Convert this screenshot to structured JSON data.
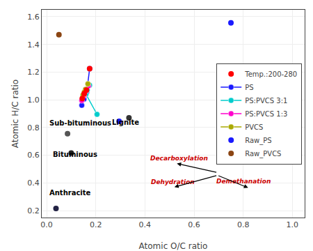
{
  "chart_data": {
    "type": "scatter",
    "xlabel": "Atomic O/C ratio",
    "ylabel": "Atomic H/C ratio",
    "xlim": [
      -0.02,
      1.05
    ],
    "ylim": [
      0.15,
      1.65
    ],
    "xticks": [
      {
        "value": 0.0,
        "label": "0.0"
      },
      0.2,
      0.4,
      0.6,
      0.8,
      {
        "value": 1.0,
        "label": "1.0"
      }
    ],
    "yticks": [
      0.2,
      0.4,
      0.6,
      0.8,
      {
        "value": 1.0,
        "label": "1.0"
      },
      1.2,
      1.4,
      1.6
    ],
    "grid": true,
    "legend": "right",
    "marker": "circle",
    "series": [
      {
        "type": "scatter",
        "x": [
          0.085,
          0.1,
          0.038,
          0.335,
          0.295
        ],
        "values": [
          0.755,
          0.615,
          0.215,
          0.87,
          0.845
        ],
        "colors": [
          "#555555",
          "#222222",
          "#222244",
          "#333333",
          "#1a1aff"
        ]
      },
      {
        "name": "Temp.:200-280",
        "type": "scatter",
        "color": "#ff0000",
        "x": [
          0.175,
          0.162,
          0.153,
          0.145
        ],
        "values": [
          1.225,
          1.07,
          1.045,
          1.01
        ]
      },
      {
        "name": "PS",
        "type": "line",
        "color": "#1a1aff",
        "x": [
          0.175,
          0.163,
          0.152,
          0.143
        ],
        "values": [
          1.225,
          1.055,
          1.005,
          0.96
        ]
      },
      {
        "name": "PS:PVCS 3:1",
        "type": "line",
        "color": "#00cccc",
        "x": [
          0.175,
          0.165,
          0.16,
          0.205
        ],
        "values": [
          1.105,
          1.07,
          1.04,
          0.895
        ]
      },
      {
        "name": "PS:PVCS 1:3",
        "type": "line",
        "color": "#ff00cc",
        "x": [
          0.17,
          0.16,
          0.152,
          0.143
        ],
        "values": [
          1.1,
          1.065,
          1.03,
          0.995
        ]
      },
      {
        "name": "PVCS",
        "type": "line",
        "color": "#aaaa00",
        "x": [
          0.168,
          0.158,
          0.153,
          0.148
        ],
        "values": [
          1.115,
          1.075,
          1.055,
          1.035
        ]
      },
      {
        "name": "Raw_PS",
        "type": "scatter",
        "color": "#1a1aff",
        "x": [
          0.75
        ],
        "values": [
          1.555
        ]
      },
      {
        "name": "Raw_PVCS",
        "type": "scatter",
        "color": "#8B4513",
        "x": [
          0.05
        ],
        "values": [
          1.47
        ]
      }
    ],
    "annotations": [
      {
        "text": "Sub-bituminous",
        "x": 0.005,
        "y": 0.795
      },
      {
        "text": "Bituminous",
        "x": 0.02,
        "y": 0.57
      },
      {
        "text": "Anthracite",
        "x": 0.005,
        "y": 0.29
      },
      {
        "text": "Lignite",
        "x": 0.26,
        "y": 0.8
      },
      {
        "text": "Decarboxylation",
        "x": 0.415,
        "y": 0.545,
        "color": "#cc0000"
      },
      {
        "text": "Dehydration",
        "x": 0.42,
        "y": 0.37,
        "color": "#cc0000"
      },
      {
        "text": "Demethanation",
        "x": 0.685,
        "y": 0.375,
        "color": "#cc0000"
      }
    ],
    "arrows": [
      {
        "start": [
          0.695,
          0.475
        ],
        "end": [
          0.53,
          0.54
        ]
      },
      {
        "start": [
          0.695,
          0.455
        ],
        "end": [
          0.52,
          0.37
        ]
      },
      {
        "start": [
          0.695,
          0.455
        ],
        "end": [
          0.82,
          0.365
        ]
      }
    ]
  }
}
